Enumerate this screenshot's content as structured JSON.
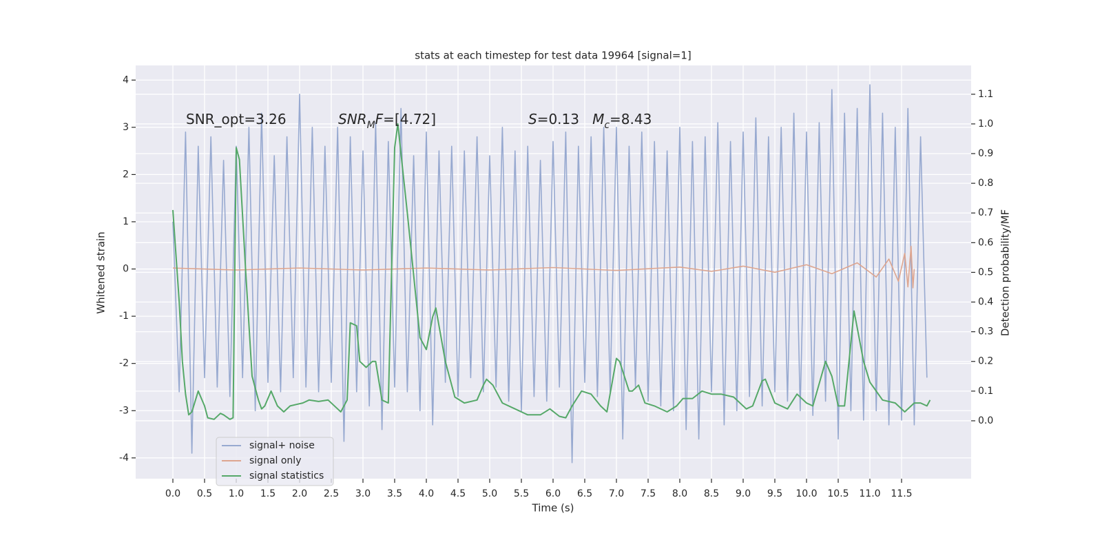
{
  "chart_data": {
    "type": "line",
    "title": "stats at each timestep for test data 19964 [signal=1]",
    "xlabel": "Time (s)",
    "ylabel": "Whitened strain",
    "y2label": "Detection probability/MF",
    "xlim": [
      -0.587,
      12.598
    ],
    "ylim": [
      -4.44,
      4.31
    ],
    "y2lim": [
      -0.195,
      1.197
    ],
    "xticks": [
      {
        "value": 0,
        "label": "0.0"
      },
      0.5,
      {
        "value": 1,
        "label": "1.0"
      },
      1.5,
      {
        "value": 2,
        "label": "2.0"
      },
      2.5,
      {
        "value": 3,
        "label": "3.0"
      },
      3.5,
      {
        "value": 4,
        "label": "4.0"
      },
      4.5,
      {
        "value": 5,
        "label": "5.0"
      },
      5.5,
      {
        "value": 6,
        "label": "6.0"
      },
      6.5,
      {
        "value": 7,
        "label": "7.0"
      },
      7.5,
      {
        "value": 8,
        "label": "8.0"
      },
      8.5,
      {
        "value": 9,
        "label": "9.0"
      },
      9.5,
      {
        "value": 10,
        "label": "10.0"
      },
      10.5,
      {
        "value": 11,
        "label": "11.0"
      },
      11.5
    ],
    "yticks": [
      -4,
      -3,
      -2,
      -1,
      0,
      1,
      2,
      3,
      4
    ],
    "y2ticks": [
      {
        "value": 0,
        "label": "0.0"
      },
      0.1,
      0.2,
      0.3,
      0.4,
      0.5,
      0.6,
      0.7,
      0.8,
      0.9,
      {
        "value": 1,
        "label": "1.0"
      },
      1.1
    ],
    "grid": true,
    "legend": "lower left",
    "annotations": [
      {
        "parts": [
          {
            "text": "SNR_opt=3.26"
          }
        ]
      },
      {
        "parts": [
          {
            "text": "SNR",
            "italic": true
          },
          {
            "text": "M",
            "italic": true,
            "sub": true
          },
          {
            "text": "F",
            "italic": true
          },
          {
            "text": "=[4.72]"
          }
        ]
      },
      {
        "parts": [
          {
            "text": "S",
            "italic": true
          },
          {
            "text": "=0.13   "
          },
          {
            "text": "M",
            "italic": true
          },
          {
            "text": "c",
            "italic": true,
            "sub": true
          },
          {
            "text": "=8.43"
          }
        ]
      }
    ],
    "series": [
      {
        "name": "signal+ noise",
        "color": "#97a9d0",
        "axis": "y",
        "x": [
          0,
          0.1,
          0.2,
          0.3,
          0.4,
          0.5,
          0.6,
          0.7,
          0.8,
          0.9,
          1,
          1.1,
          1.2,
          1.3,
          1.4,
          1.5,
          1.6,
          1.7,
          1.8,
          1.9,
          2,
          2.1,
          2.2,
          2.3,
          2.4,
          2.5,
          2.6,
          2.7,
          2.8,
          2.9,
          3,
          3.1,
          3.2,
          3.3,
          3.4,
          3.5,
          3.6,
          3.7,
          3.8,
          3.9,
          4,
          4.1,
          4.2,
          4.3,
          4.4,
          4.5,
          4.6,
          4.7,
          4.8,
          4.9,
          5,
          5.1,
          5.2,
          5.3,
          5.4,
          5.5,
          5.6,
          5.7,
          5.8,
          5.9,
          6,
          6.1,
          6.2,
          6.3,
          6.4,
          6.5,
          6.6,
          6.7,
          6.8,
          6.9,
          7,
          7.1,
          7.2,
          7.3,
          7.4,
          7.5,
          7.6,
          7.7,
          7.8,
          7.9,
          8,
          8.1,
          8.2,
          8.3,
          8.4,
          8.5,
          8.6,
          8.7,
          8.8,
          8.9,
          9,
          9.1,
          9.2,
          9.3,
          9.4,
          9.5,
          9.6,
          9.7,
          9.8,
          9.9,
          10,
          10.1,
          10.2,
          10.3,
          10.4,
          10.5,
          10.6,
          10.7,
          10.8,
          10.9,
          11,
          11.1,
          11.2,
          11.3,
          11.4,
          11.5,
          11.6,
          11.7,
          11.8,
          11.9
        ],
        "values": [
          1.0,
          -2.6,
          2.9,
          -3.9,
          2.6,
          -2.3,
          2.8,
          -2.5,
          2.3,
          -2.7,
          2.6,
          -2.3,
          3.0,
          -3.0,
          3.3,
          -2.4,
          2.4,
          -2.6,
          2.8,
          -2.3,
          3.7,
          -2.5,
          3.0,
          -2.6,
          2.6,
          -2.4,
          3.0,
          -3.65,
          2.8,
          -2.6,
          2.5,
          -2.9,
          3.1,
          -3.4,
          2.7,
          -2.5,
          3.4,
          -2.6,
          2.4,
          -3.0,
          2.9,
          -3.3,
          2.5,
          -2.4,
          2.6,
          -2.7,
          2.5,
          -2.3,
          2.8,
          -2.6,
          2.4,
          -2.5,
          3.0,
          -2.8,
          2.5,
          -3.0,
          2.6,
          -2.7,
          2.3,
          -2.8,
          2.7,
          -2.5,
          2.9,
          -4.1,
          2.6,
          -2.4,
          2.8,
          -2.7,
          3.0,
          -2.6,
          3.0,
          -3.6,
          2.6,
          -2.5,
          2.9,
          -2.8,
          2.7,
          -2.9,
          2.5,
          -3.0,
          3.0,
          -3.4,
          2.7,
          -3.6,
          2.8,
          -2.6,
          3.1,
          -3.3,
          2.7,
          -3.0,
          2.9,
          -2.7,
          3.2,
          -2.9,
          2.8,
          -2.6,
          3.0,
          -2.8,
          3.3,
          -3.0,
          2.9,
          -3.1,
          3.1,
          -2.8,
          3.8,
          -3.6,
          3.3,
          -3.0,
          3.4,
          -3.2,
          3.9,
          -3.0,
          3.3,
          -3.3,
          3.0,
          -3.2,
          3.4,
          -3.3,
          2.8,
          -2.3
        ]
      },
      {
        "name": "signal only",
        "color": "#dda58f",
        "axis": "y",
        "x": [
          0,
          1,
          2,
          3,
          4,
          5,
          6,
          7,
          8,
          8.5,
          9,
          9.5,
          10,
          10.4,
          10.8,
          11.1,
          11.3,
          11.45,
          11.55,
          11.6,
          11.65,
          11.68,
          11.7
        ],
        "values": [
          0.02,
          -0.02,
          0.02,
          -0.02,
          0.02,
          -0.02,
          0.03,
          -0.03,
          0.04,
          -0.05,
          0.06,
          -0.07,
          0.09,
          -0.1,
          0.13,
          -0.17,
          0.21,
          -0.26,
          0.33,
          -0.38,
          0.48,
          -0.4,
          0
        ]
      },
      {
        "name": "signal statistics",
        "color": "#55a868",
        "axis": "y2",
        "x": [
          0,
          0.1,
          0.15,
          0.2,
          0.25,
          0.3,
          0.4,
          0.5,
          0.55,
          0.65,
          0.75,
          0.8,
          0.9,
          0.95,
          1,
          1.05,
          1.15,
          1.25,
          1.35,
          1.4,
          1.45,
          1.55,
          1.65,
          1.75,
          1.85,
          1.95,
          2.05,
          2.15,
          2.3,
          2.45,
          2.6,
          2.65,
          2.75,
          2.8,
          2.9,
          2.95,
          3.05,
          3.15,
          3.2,
          3.3,
          3.4,
          3.5,
          3.55,
          3.7,
          3.9,
          4,
          4.1,
          4.15,
          4.3,
          4.45,
          4.6,
          4.8,
          4.9,
          4.95,
          5.05,
          5.2,
          5.4,
          5.6,
          5.8,
          5.95,
          6.1,
          6.2,
          6.3,
          6.45,
          6.6,
          6.75,
          6.85,
          7,
          7.05,
          7.2,
          7.25,
          7.35,
          7.45,
          7.6,
          7.8,
          7.95,
          8.05,
          8.2,
          8.35,
          8.5,
          8.65,
          8.85,
          9.05,
          9.15,
          9.3,
          9.35,
          9.5,
          9.7,
          9.85,
          10,
          10.1,
          10.3,
          10.4,
          10.5,
          10.6,
          10.75,
          10.9,
          11,
          11.2,
          11.4,
          11.55,
          11.7,
          11.8,
          11.9,
          11.95
        ],
        "values": [
          0.71,
          0.4,
          0.2,
          0.09,
          0.02,
          0.03,
          0.1,
          0.05,
          0.01,
          0.005,
          0.025,
          0.02,
          0.005,
          0.01,
          0.92,
          0.88,
          0.5,
          0.15,
          0.07,
          0.04,
          0.05,
          0.1,
          0.05,
          0.03,
          0.05,
          0.055,
          0.06,
          0.07,
          0.065,
          0.07,
          0.04,
          0.03,
          0.07,
          0.33,
          0.32,
          0.2,
          0.18,
          0.2,
          0.2,
          0.07,
          0.06,
          0.92,
          1.0,
          0.7,
          0.28,
          0.24,
          0.35,
          0.38,
          0.2,
          0.08,
          0.06,
          0.07,
          0.12,
          0.14,
          0.12,
          0.06,
          0.04,
          0.02,
          0.02,
          0.04,
          0.015,
          0.01,
          0.05,
          0.1,
          0.09,
          0.05,
          0.03,
          0.21,
          0.2,
          0.1,
          0.1,
          0.12,
          0.06,
          0.05,
          0.03,
          0.05,
          0.075,
          0.075,
          0.1,
          0.09,
          0.09,
          0.08,
          0.04,
          0.05,
          0.135,
          0.14,
          0.06,
          0.04,
          0.09,
          0.06,
          0.05,
          0.2,
          0.15,
          0.05,
          0.05,
          0.37,
          0.2,
          0.13,
          0.07,
          0.06,
          0.03,
          0.06,
          0.06,
          0.05,
          0.07
        ]
      }
    ]
  }
}
